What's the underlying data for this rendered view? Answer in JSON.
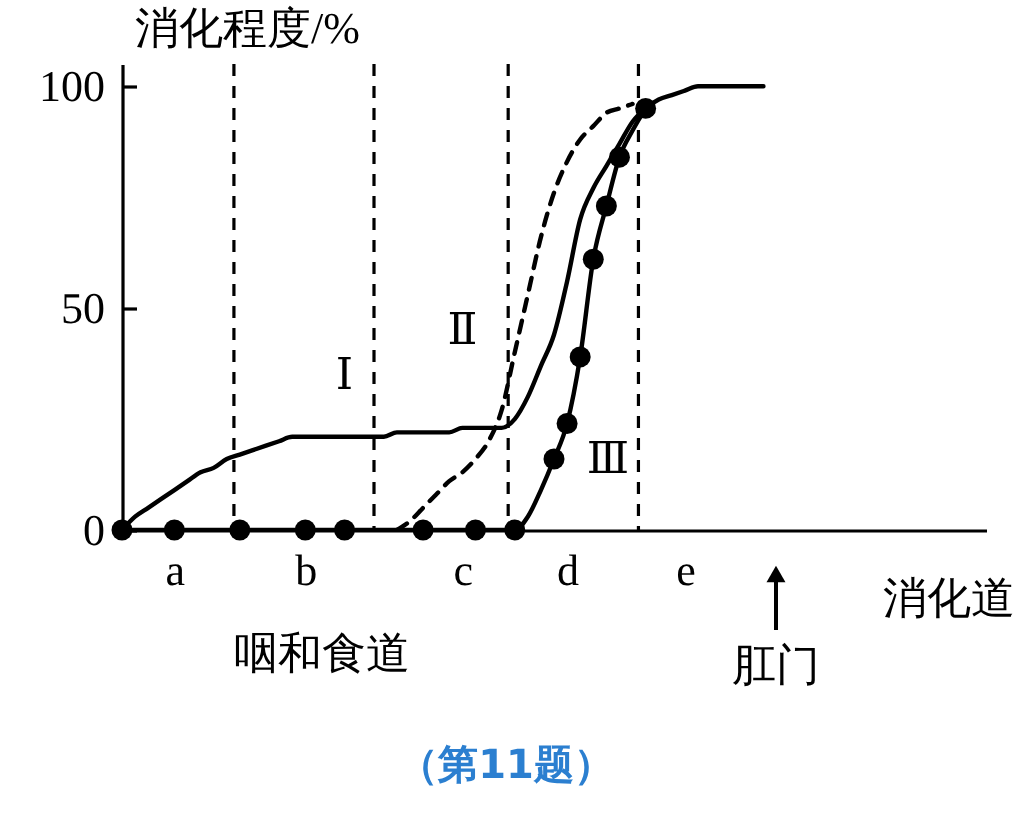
{
  "chart_data": {
    "type": "line",
    "title": "（第11题）",
    "xlabel": "消化道",
    "ylabel": "消化程度/%",
    "categories": [
      null,
      null,
      null,
      null,
      "a",
      null,
      null,
      null,
      null,
      null,
      null,
      null,
      null,
      null,
      "b",
      null,
      null,
      null,
      null,
      null,
      null,
      null,
      null,
      null,
      null,
      null,
      "c",
      null,
      null,
      null,
      null,
      null,
      null,
      null,
      "d",
      null,
      null,
      null,
      null,
      null,
      null,
      null,
      null,
      "e",
      null,
      null,
      null,
      null,
      null,
      null,
      null,
      null,
      null,
      null,
      null,
      null,
      null,
      null,
      null,
      null,
      null,
      null,
      null,
      null,
      null,
      null,
      null
    ],
    "ylim": [
      0,
      105
    ],
    "yticks": [
      0,
      50,
      100
    ],
    "series": [
      {
        "name": "Ⅰ",
        "color": "#000000",
        "values": [
          0,
          3,
          5,
          7,
          9,
          11,
          13,
          14,
          16,
          17,
          18,
          19,
          20,
          21,
          21,
          21,
          21,
          21,
          21,
          21,
          21,
          22,
          22,
          22,
          22,
          22,
          23,
          23,
          23,
          23,
          25,
          30,
          37,
          44,
          56,
          70,
          77,
          82,
          87,
          92,
          95,
          97,
          98,
          99,
          100,
          100,
          100,
          100,
          100,
          100,
          null,
          null,
          null,
          null,
          null,
          null,
          null,
          null,
          null,
          null,
          null,
          null,
          null,
          null,
          null,
          null,
          null
        ]
      },
      {
        "name": "Ⅱ",
        "color": "#000000",
        "line_style": "dashed",
        "values": [
          null,
          null,
          null,
          null,
          null,
          null,
          null,
          null,
          null,
          null,
          null,
          null,
          null,
          null,
          null,
          null,
          null,
          null,
          null,
          null,
          null,
          0,
          2,
          5,
          8,
          11,
          13,
          16,
          20,
          27,
          40,
          53,
          66,
          76,
          83,
          88,
          91,
          94,
          95,
          96,
          null,
          null,
          null,
          null,
          null,
          null,
          null,
          null,
          null,
          null,
          null,
          null,
          null,
          null,
          null,
          null,
          null,
          null,
          null,
          null,
          null,
          null,
          null,
          null,
          null,
          null,
          null
        ]
      },
      {
        "name": "Ⅲ",
        "color": "#000000",
        "values": [
          0,
          0,
          0,
          0,
          0,
          0,
          0,
          0,
          0,
          0,
          0,
          0,
          0,
          0,
          0,
          0,
          0,
          0,
          0,
          0,
          0,
          0,
          0,
          0,
          0,
          0,
          0,
          0,
          0,
          0,
          0,
          3,
          9,
          16,
          24,
          39,
          61,
          73,
          84,
          90,
          95,
          null,
          null,
          null,
          null,
          null,
          null,
          null,
          null,
          null,
          null,
          null,
          null,
          null,
          null,
          null,
          null,
          null,
          null,
          null,
          null,
          null,
          null,
          null,
          null,
          null,
          null
        ]
      },
      {
        "type": "scatter",
        "color": "#000000",
        "marker": "circle",
        "values": [
          0,
          null,
          null,
          null,
          0,
          null,
          null,
          null,
          null,
          0,
          null,
          null,
          null,
          null,
          0,
          null,
          null,
          0,
          null,
          null,
          null,
          null,
          null,
          0,
          null,
          null,
          null,
          0,
          null,
          null,
          0,
          null,
          null,
          16,
          24,
          39,
          61,
          73,
          84,
          null,
          95,
          null,
          null,
          null,
          null,
          null,
          null,
          null,
          null,
          null,
          null,
          null,
          null,
          null,
          null,
          null,
          null,
          null,
          null,
          null,
          null,
          null,
          null,
          null,
          null,
          null,
          null
        ]
      }
    ],
    "annotations": [
      "咽和食道",
      "肛门"
    ],
    "line_style": "solid",
    "marker": "none",
    "grid": false
  }
}
